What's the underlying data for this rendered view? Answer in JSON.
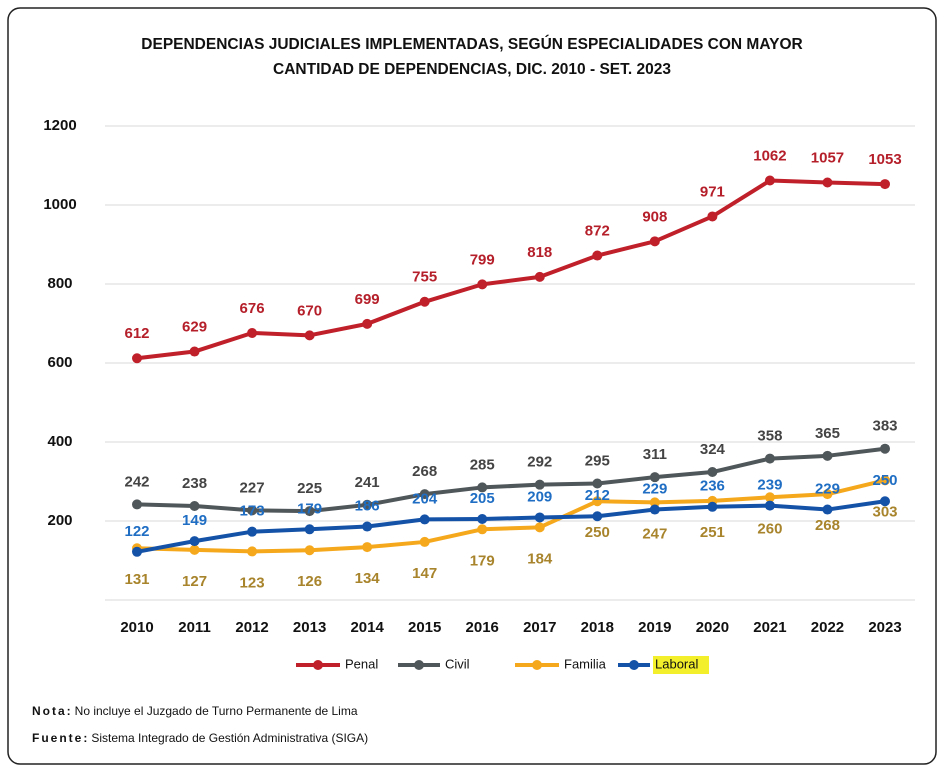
{
  "chart_data": {
    "type": "line",
    "title": [
      "DEPENDENCIAS JUDICIALES IMPLEMENTADAS, SEGÚN ESPECIALIDADES CON MAYOR",
      "CANTIDAD DE DEPENDENCIAS, DIC. 2010 - SET. 2023"
    ],
    "categories": [
      "2010",
      "2011",
      "2012",
      "2013",
      "2014",
      "2015",
      "2016",
      "2017",
      "2018",
      "2019",
      "2020",
      "2021",
      "2022",
      "2023"
    ],
    "series": [
      {
        "name": "Penal",
        "color": "#c0202a",
        "label_color": "#b51f2a",
        "values": [
          612,
          629,
          676,
          670,
          699,
          755,
          799,
          818,
          872,
          908,
          971,
          1062,
          1057,
          1053
        ]
      },
      {
        "name": "Civil",
        "color": "#50575a",
        "label_color": "#444444",
        "values": [
          242,
          238,
          227,
          225,
          241,
          268,
          285,
          292,
          295,
          311,
          324,
          358,
          365,
          383
        ]
      },
      {
        "name": "Familia",
        "color": "#f5a81c",
        "label_color": "#a8842c",
        "values": [
          131,
          127,
          123,
          126,
          134,
          147,
          179,
          184,
          250,
          247,
          251,
          260,
          268,
          303
        ]
      },
      {
        "name": "Laboral",
        "color": "#1452a8",
        "label_color": "#1f6ec4",
        "values": [
          122,
          149,
          173,
          179,
          186,
          204,
          205,
          209,
          212,
          229,
          236,
          239,
          229,
          250
        ]
      }
    ],
    "ylim": [
      0,
      1200
    ],
    "yticks": [
      200,
      400,
      600,
      800,
      1000,
      1200
    ],
    "grid": true,
    "legend": "bottom"
  },
  "notes": [
    {
      "label": "Nota:",
      "text": "No incluye el Juzgado de Turno Permanente de Lima"
    },
    {
      "label": "Fuente:",
      "text": "Sistema Integrado de Gestión Administrativa (SIGA)"
    }
  ]
}
